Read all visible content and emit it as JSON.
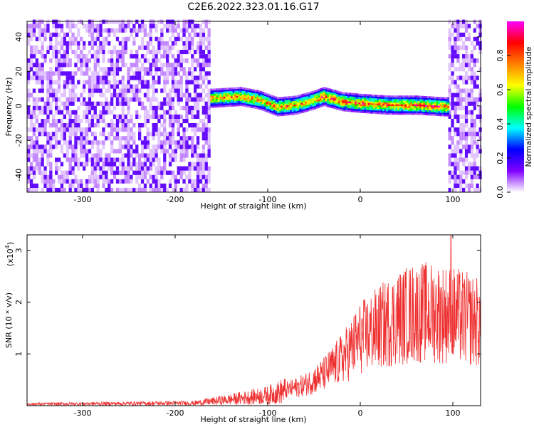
{
  "title": "C2E6.2022.323.01.16.G17",
  "chart_data": [
    {
      "type": "heatmap",
      "title": "C2E6.2022.323.01.16.G17",
      "xlabel": "Height of straight line (km)",
      "ylabel": "Frequency (Hz)",
      "xlim": [
        -360,
        130
      ],
      "ylim": [
        -50,
        49
      ],
      "xticks": [
        -300,
        -200,
        -100,
        0,
        100
      ],
      "yticks": [
        -40,
        -20,
        0,
        20,
        40
      ],
      "colorbar": {
        "label": "Normalized spectral amplitude",
        "range": [
          0,
          1
        ],
        "ticks": [
          "0.0",
          "0.2",
          "0.4",
          "0.6",
          "0.8"
        ],
        "colormap": [
          "#ffffff",
          "#8000ff",
          "#0000ff",
          "#00ffff",
          "#00ff00",
          "#ffff00",
          "#ff8000",
          "#ff0000",
          "#ff00ff"
        ]
      },
      "regions": [
        {
          "x": [
            -360,
            -162
          ],
          "y": [
            -50,
            49
          ],
          "description_level": 0.15
        },
        {
          "x": [
            -162,
            95
          ],
          "y": [
            -5,
            6
          ],
          "description_level": 0.5
        },
        {
          "x": [
            95,
            130
          ],
          "y": [
            -50,
            49
          ],
          "description_level": 0.15
        }
      ],
      "ridge": [
        {
          "x": -160,
          "y": 4
        },
        {
          "x": -130,
          "y": 5
        },
        {
          "x": -110,
          "y": 3
        },
        {
          "x": -90,
          "y": -1
        },
        {
          "x": -70,
          "y": 0
        },
        {
          "x": -50,
          "y": 3
        },
        {
          "x": -40,
          "y": 5
        },
        {
          "x": -20,
          "y": 2
        },
        {
          "x": 0,
          "y": 1
        },
        {
          "x": 30,
          "y": 0
        },
        {
          "x": 60,
          "y": 0
        },
        {
          "x": 90,
          "y": -1
        }
      ]
    },
    {
      "type": "line",
      "xlabel": "Height of straight line (km)",
      "ylabel": "SNR (10 * v/v)",
      "yscale_label": "(x10",
      "yscale_exp": "4",
      "yscale_close": ")",
      "xlim": [
        -360,
        130
      ],
      "ylim": [
        0,
        3.3
      ],
      "xticks": [
        -300,
        -200,
        -100,
        0,
        100
      ],
      "yticks": [
        1,
        2,
        3
      ],
      "series": [
        {
          "color": "#ee3030",
          "envelope": [
            {
              "x": -360,
              "y": 0.03
            },
            {
              "x": -180,
              "y": 0.05
            },
            {
              "x": -140,
              "y": 0.12
            },
            {
              "x": -100,
              "y": 0.2
            },
            {
              "x": -60,
              "y": 0.4
            },
            {
              "x": -40,
              "y": 0.6
            },
            {
              "x": -20,
              "y": 0.9
            },
            {
              "x": 0,
              "y": 1.3
            },
            {
              "x": 20,
              "y": 1.5
            },
            {
              "x": 40,
              "y": 1.7
            },
            {
              "x": 60,
              "y": 1.8
            },
            {
              "x": 80,
              "y": 1.8
            },
            {
              "x": 100,
              "y": 1.75
            },
            {
              "x": 130,
              "y": 1.6
            }
          ],
          "peak": {
            "x": 98,
            "y": 3.3
          }
        }
      ]
    }
  ]
}
